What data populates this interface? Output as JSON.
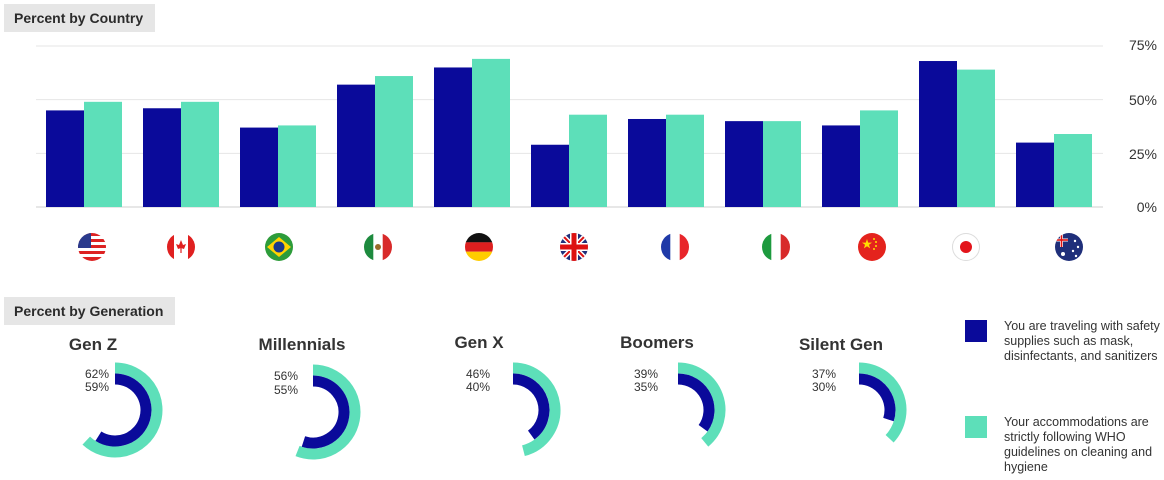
{
  "sections": {
    "country_title": "Percent by Country",
    "generation_title": "Percent by Generation"
  },
  "colors": {
    "navy": "#0a0a9a",
    "mint": "#5ddfb9"
  },
  "chart_data": [
    {
      "type": "bar",
      "categories": [
        "United States",
        "Canada",
        "Brazil",
        "Mexico",
        "Germany",
        "United Kingdom",
        "France",
        "Italy",
        "China",
        "Japan",
        "Australia"
      ],
      "category_icons": [
        "us-flag-icon",
        "canada-flag-icon",
        "brazil-flag-icon",
        "mexico-flag-icon",
        "germany-flag-icon",
        "uk-flag-icon",
        "france-flag-icon",
        "italy-flag-icon",
        "china-flag-icon",
        "japan-flag-icon",
        "australia-flag-icon"
      ],
      "series": [
        {
          "values": [
            45,
            46,
            37,
            57,
            65,
            29,
            41,
            40,
            38,
            68,
            30
          ]
        },
        {
          "values": [
            49,
            49,
            38,
            61,
            69,
            43,
            43,
            40,
            45,
            64,
            34
          ]
        }
      ],
      "y_ticks": [
        "75%",
        "50%",
        "25%",
        "0%"
      ],
      "ylim": [
        0,
        75
      ],
      "grid": true
    },
    {
      "type": "radial-bar",
      "groups": [
        {
          "name": "Gen Z",
          "outer_label": "62%",
          "inner_label": "59%",
          "outer": 62,
          "inner": 59
        },
        {
          "name": "Millennials",
          "outer_label": "56%",
          "inner_label": "55%",
          "outer": 56,
          "inner": 55
        },
        {
          "name": "Gen X",
          "outer_label": "46%",
          "inner_label": "40%",
          "outer": 46,
          "inner": 40
        },
        {
          "name": "Boomers",
          "outer_label": "39%",
          "inner_label": "35%",
          "outer": 39,
          "inner": 35
        },
        {
          "name": "Silent Gen",
          "outer_label": "37%",
          "inner_label": "30%",
          "outer": 37,
          "inner": 30
        }
      ]
    }
  ],
  "legend": [
    {
      "label": "You are traveling with safety supplies such as mask, disinfectants, and sanitizers",
      "color": "#0a0a9a"
    },
    {
      "label": "Your accommodations are strictly following WHO guidelines on cleaning and hygiene",
      "color": "#5ddfb9"
    }
  ]
}
